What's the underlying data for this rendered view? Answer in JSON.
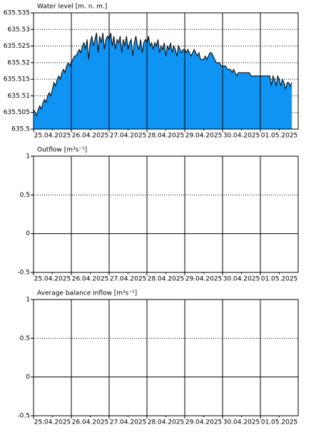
{
  "chart_data": [
    {
      "type": "area",
      "title": "Water level [m. n. m.]",
      "categories": [
        "25.04.2025",
        "26.04.2025",
        "27.04.2025",
        "28.04.2025",
        "29.04.2025",
        "30.04.2025",
        "01.05.2025"
      ],
      "color": "#0f94f4",
      "values": [
        [
          635.506,
          635.505,
          635.504,
          635.506,
          635.507,
          635.506,
          635.508,
          635.509,
          635.508,
          635.51,
          635.511,
          635.51,
          635.512,
          635.514,
          635.513,
          635.515,
          635.516,
          635.515,
          635.517,
          635.518,
          635.517,
          635.519,
          635.52,
          635.519
        ],
        [
          635.52,
          635.521,
          635.522,
          635.522,
          635.523,
          635.524,
          635.523,
          635.525,
          635.526,
          635.524,
          635.527,
          635.521,
          635.526,
          635.528,
          635.525,
          635.527,
          635.529,
          635.523,
          635.528,
          635.526,
          635.529,
          635.524,
          635.527,
          635.528
        ],
        [
          635.527,
          635.529,
          635.525,
          635.528,
          635.524,
          635.527,
          635.526,
          635.528,
          635.523,
          635.527,
          635.525,
          635.528,
          635.524,
          635.526,
          635.527,
          635.522,
          635.526,
          635.528,
          635.525,
          635.524,
          635.527,
          635.523,
          635.526,
          635.527
        ],
        [
          635.526,
          635.528,
          635.525,
          635.526,
          635.524,
          635.526,
          635.525,
          635.527,
          635.523,
          635.525,
          635.524,
          635.526,
          635.522,
          635.525,
          635.524,
          635.526,
          635.523,
          635.525,
          635.524,
          635.522,
          635.525,
          635.524,
          635.523,
          635.524
        ],
        [
          635.524,
          635.523,
          635.524,
          635.523,
          635.522,
          635.523,
          635.524,
          635.523,
          635.522,
          635.523,
          635.521,
          635.521,
          635.521,
          635.522,
          635.521,
          635.522,
          635.523,
          635.523,
          635.522,
          635.521,
          635.52,
          635.52,
          635.52,
          635.519
        ],
        [
          635.519,
          635.519,
          635.519,
          635.518,
          635.518,
          635.518,
          635.517,
          635.518,
          635.517,
          635.516,
          635.517,
          635.517,
          635.517,
          635.517,
          635.517,
          635.517,
          635.517,
          635.517,
          635.516,
          635.516,
          635.516,
          635.516,
          635.516,
          635.516
        ],
        [
          635.516,
          635.516,
          635.516,
          635.516,
          635.516,
          635.516,
          635.516,
          635.513,
          635.516,
          635.515,
          635.513,
          635.516,
          635.515,
          635.513,
          635.515,
          635.514,
          635.512,
          635.514,
          635.514,
          635.513,
          635.514
        ]
      ],
      "ylim": [
        635.5,
        635.535
      ],
      "yticks": [
        635.5,
        635.505,
        635.51,
        635.515,
        635.52,
        635.525,
        635.53,
        635.535
      ],
      "grid": true
    },
    {
      "type": "line",
      "title": "Outflow [m³s⁻¹]",
      "categories": [
        "25.04.2025",
        "26.04.2025",
        "27.04.2025",
        "28.04.2025",
        "29.04.2025",
        "30.04.2025",
        "01.05.2025"
      ],
      "ylim": [
        -0.5,
        1
      ],
      "yticks": [
        -0.5,
        0,
        0.5,
        1
      ],
      "grid": true
    },
    {
      "type": "line",
      "title": "Average balance inflow  [m³s⁻¹]",
      "categories": [
        "25.04.2025",
        "26.04.2025",
        "27.04.2025",
        "28.04.2025",
        "29.04.2025",
        "30.04.2025",
        "01.05.2025"
      ],
      "ylim": [
        -0.5,
        1
      ],
      "yticks": [
        -0.5,
        0,
        0.5,
        1
      ],
      "grid": true
    }
  ]
}
